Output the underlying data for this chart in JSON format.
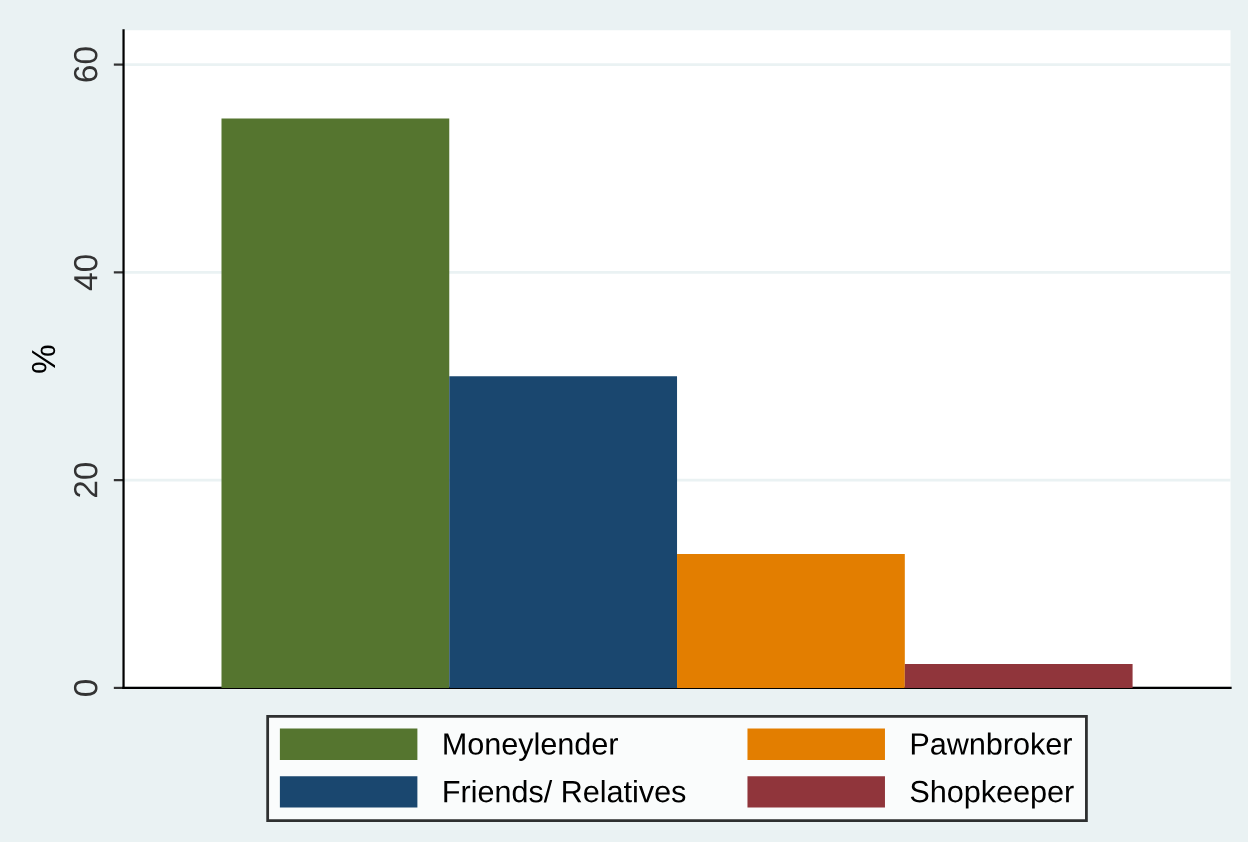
{
  "chart_data": {
    "type": "bar",
    "ylabel": "%",
    "categories": [
      null
    ],
    "series": [
      {
        "name": "Moneylender",
        "color": "#55752f",
        "values": [
          54.8
        ]
      },
      {
        "name": "Friends/ Relatives",
        "color": "#1a476f",
        "values": [
          30
        ]
      },
      {
        "name": "Pawnbroker",
        "color": "#e37e00",
        "values": [
          12.9
        ]
      },
      {
        "name": "Shopkeeper",
        "color": "#90353b",
        "values": [
          2.3
        ]
      }
    ],
    "ylim": [
      0,
      63.3
    ],
    "yticks": [
      0,
      20,
      40,
      60
    ],
    "grid": "y",
    "legend": "bottom"
  }
}
